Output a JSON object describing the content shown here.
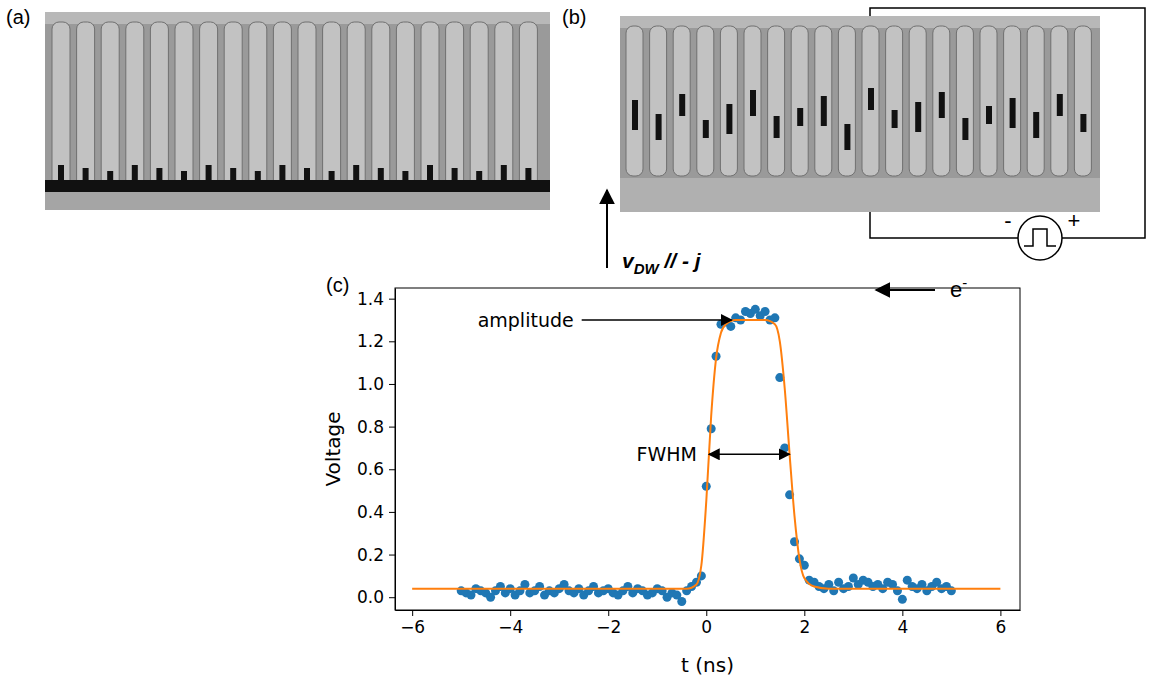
{
  "chart_data": {
    "type": "scatter",
    "panel_label": "(c)",
    "xlabel": "t (ns)",
    "ylabel": "Voltage",
    "xlim": [
      -6.35,
      6.4
    ],
    "ylim": [
      -0.06,
      1.45
    ],
    "xticks": [
      {
        "value": -6,
        "label": "−6"
      },
      {
        "value": -4,
        "label": "−4"
      },
      {
        "value": -2,
        "label": "−2"
      },
      0,
      2,
      4,
      6
    ],
    "yticks": [
      {
        "value": 0,
        "label": "0.0"
      },
      {
        "value": 0.2,
        "label": "0.2"
      },
      {
        "value": 0.4,
        "label": "0.4"
      },
      {
        "value": 0.6,
        "label": "0.6"
      },
      {
        "value": 0.8,
        "label": "0.8"
      },
      {
        "value": 1.0,
        "label": "1.0"
      },
      {
        "value": 1.2,
        "label": "1.2"
      },
      {
        "value": 1.4,
        "label": "1.4"
      }
    ],
    "grid": false,
    "series": [
      {
        "type": "scatter",
        "color": "#1f77b4",
        "marker": "circle",
        "x": [
          -5.0,
          -4.9,
          -4.8,
          -4.7,
          -4.6,
          -4.5,
          -4.4,
          -4.3,
          -4.2,
          -4.1,
          -4.0,
          -3.9,
          -3.8,
          -3.7,
          -3.6,
          -3.5,
          -3.4,
          -3.3,
          -3.2,
          -3.1,
          -3.0,
          -2.9,
          -2.8,
          -2.7,
          -2.6,
          -2.5,
          -2.4,
          -2.3,
          -2.2,
          -2.1,
          -2.0,
          -1.9,
          -1.8,
          -1.7,
          -1.6,
          -1.5,
          -1.4,
          -1.3,
          -1.2,
          -1.1,
          -1.0,
          -0.9,
          -0.8,
          -0.7,
          -0.6,
          -0.5,
          -0.4,
          -0.3,
          -0.2,
          -0.1,
          0.0,
          0.1,
          0.2,
          0.3,
          0.4,
          0.5,
          0.6,
          0.7,
          0.8,
          0.9,
          1.0,
          1.1,
          1.2,
          1.3,
          1.4,
          1.5,
          1.6,
          1.7,
          1.8,
          1.9,
          2.0,
          2.1,
          2.2,
          2.3,
          2.4,
          2.5,
          2.6,
          2.7,
          2.8,
          2.9,
          3.0,
          3.1,
          3.2,
          3.3,
          3.4,
          3.5,
          3.6,
          3.7,
          3.8,
          3.9,
          4.0,
          4.1,
          4.2,
          4.3,
          4.4,
          4.5,
          4.6,
          4.7,
          4.8,
          4.9,
          5.0
        ],
        "values": [
          0.03,
          0.02,
          0.01,
          0.04,
          0.03,
          0.02,
          0.0,
          0.03,
          0.05,
          0.02,
          0.04,
          0.01,
          0.03,
          0.06,
          0.02,
          0.03,
          0.05,
          0.01,
          0.03,
          0.02,
          0.04,
          0.06,
          0.03,
          0.02,
          0.04,
          0.01,
          0.03,
          0.05,
          0.02,
          0.03,
          0.04,
          0.02,
          0.01,
          0.03,
          0.05,
          0.02,
          0.04,
          0.03,
          0.01,
          0.02,
          0.04,
          0.03,
          0.0,
          0.02,
          0.01,
          -0.02,
          0.03,
          0.05,
          0.07,
          0.1,
          0.52,
          0.79,
          1.13,
          1.28,
          1.29,
          1.27,
          1.31,
          1.3,
          1.34,
          1.33,
          1.35,
          1.32,
          1.34,
          1.3,
          1.31,
          1.03,
          0.7,
          0.48,
          0.26,
          0.18,
          0.15,
          0.08,
          0.07,
          0.05,
          0.04,
          0.06,
          0.03,
          0.07,
          0.04,
          0.05,
          0.09,
          0.06,
          0.08,
          0.07,
          0.05,
          0.06,
          0.04,
          0.07,
          0.06,
          0.03,
          -0.01,
          0.08,
          0.05,
          0.04,
          0.06,
          0.03,
          0.05,
          0.07,
          0.04,
          0.05,
          0.03
        ]
      },
      {
        "type": "line",
        "color": "#ff7f0e",
        "line_style": "solid",
        "x": [
          -6,
          -0.4,
          -0.2,
          -0.1,
          0,
          0.1,
          0.2,
          0.3,
          0.4,
          0.6,
          1.2,
          1.4,
          1.5,
          1.6,
          1.7,
          1.8,
          1.9,
          2.0,
          2.2,
          2.5,
          6
        ],
        "values": [
          0.04,
          0.04,
          0.06,
          0.15,
          0.45,
          0.85,
          1.12,
          1.24,
          1.28,
          1.3,
          1.3,
          1.28,
          1.2,
          0.98,
          0.67,
          0.38,
          0.18,
          0.09,
          0.05,
          0.04,
          0.04
        ]
      }
    ],
    "annotations": [
      {
        "text": "amplitude"
      },
      {
        "text": "FWHM"
      }
    ]
  },
  "panels": {
    "a": {
      "label": "(a)"
    },
    "b": {
      "label": "(b)",
      "velocity_label": {
        "text": "v",
        "sub": "DW",
        "rest": " // - j"
      },
      "source": {
        "minus": "-",
        "plus": "+"
      },
      "electron": {
        "text": "e",
        "sup": "-"
      }
    }
  }
}
